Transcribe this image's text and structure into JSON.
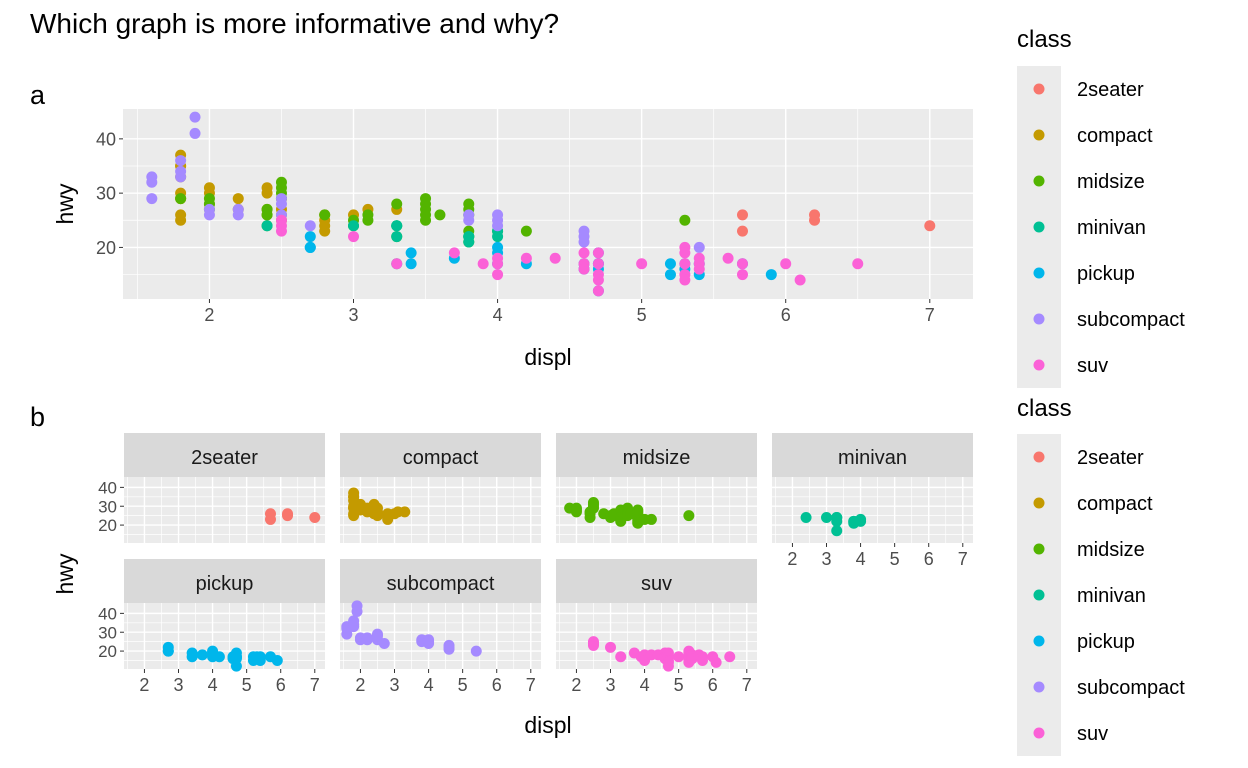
{
  "title": "Which graph is more informative and why?",
  "colors": {
    "2seater": "#F8766D",
    "compact": "#C49A00",
    "midsize": "#53B400",
    "minivan": "#00C094",
    "pickup": "#00B6EB",
    "subcompact": "#A58AFF",
    "suv": "#FB61D7",
    "panel_bg": "#EBEBEB",
    "strip_bg": "#D9D9D9",
    "grid": "#FFFFFF",
    "tick_text": "#4D4D4D"
  },
  "chart_data": [
    {
      "tag": "a",
      "type": "scatter",
      "xlabel": "displ",
      "ylabel": "hwy",
      "xlim": [
        1.4,
        7.3
      ],
      "ylim": [
        10.5,
        45.5
      ],
      "xticks": [
        2,
        3,
        4,
        5,
        6,
        7
      ],
      "yticks": [
        20,
        30,
        40
      ],
      "grid": true,
      "legend": {
        "title": "class",
        "position": "right",
        "entries": [
          "2seater",
          "compact",
          "midsize",
          "minivan",
          "pickup",
          "subcompact",
          "suv"
        ]
      },
      "series": [
        {
          "name": "2seater",
          "points": [
            [
              5.7,
              26
            ],
            [
              5.7,
              23
            ],
            [
              6.2,
              26
            ],
            [
              6.2,
              25
            ],
            [
              7.0,
              24
            ]
          ]
        },
        {
          "name": "compact",
          "points": [
            [
              1.8,
              29
            ],
            [
              1.8,
              29
            ],
            [
              1.8,
              26
            ],
            [
              1.8,
              25
            ],
            [
              1.8,
              30
            ],
            [
              1.8,
              33
            ],
            [
              1.8,
              35
            ],
            [
              1.8,
              37
            ],
            [
              1.8,
              35
            ],
            [
              2.0,
              31
            ],
            [
              2.0,
              30
            ],
            [
              2.0,
              28
            ],
            [
              2.2,
              29
            ],
            [
              2.2,
              27
            ],
            [
              2.4,
              31
            ],
            [
              2.4,
              30
            ],
            [
              2.4,
              27
            ],
            [
              2.4,
              26
            ],
            [
              2.5,
              29
            ],
            [
              2.5,
              27
            ],
            [
              2.5,
              26
            ],
            [
              2.5,
              25
            ],
            [
              2.8,
              26
            ],
            [
              2.8,
              25
            ],
            [
              2.8,
              24
            ],
            [
              2.8,
              23
            ],
            [
              3.0,
              26
            ],
            [
              3.1,
              27
            ],
            [
              3.3,
              27
            ]
          ]
        },
        {
          "name": "midsize",
          "points": [
            [
              1.8,
              29
            ],
            [
              2.0,
              29
            ],
            [
              2.0,
              28
            ],
            [
              2.0,
              27
            ],
            [
              2.4,
              27
            ],
            [
              2.4,
              26
            ],
            [
              2.4,
              24
            ],
            [
              2.5,
              32
            ],
            [
              2.5,
              31
            ],
            [
              2.5,
              30
            ],
            [
              2.5,
              29
            ],
            [
              2.8,
              26
            ],
            [
              3.0,
              25
            ],
            [
              3.0,
              24
            ],
            [
              3.1,
              26
            ],
            [
              3.1,
              25
            ],
            [
              3.3,
              28
            ],
            [
              3.3,
              24
            ],
            [
              3.3,
              22
            ],
            [
              3.5,
              29
            ],
            [
              3.5,
              28
            ],
            [
              3.5,
              27
            ],
            [
              3.5,
              26
            ],
            [
              3.5,
              25
            ],
            [
              3.6,
              26
            ],
            [
              3.8,
              28
            ],
            [
              3.8,
              27
            ],
            [
              3.8,
              26
            ],
            [
              3.8,
              23
            ],
            [
              3.8,
              22
            ],
            [
              3.8,
              21
            ],
            [
              4.0,
              23
            ],
            [
              4.2,
              23
            ],
            [
              5.3,
              25
            ]
          ]
        },
        {
          "name": "minivan",
          "points": [
            [
              2.4,
              24
            ],
            [
              3.0,
              24
            ],
            [
              3.3,
              24
            ],
            [
              3.3,
              22
            ],
            [
              3.3,
              24
            ],
            [
              3.8,
              22
            ],
            [
              3.8,
              21
            ],
            [
              3.8,
              22
            ],
            [
              4.0,
              23
            ],
            [
              4.0,
              22
            ],
            [
              3.3,
              17
            ]
          ]
        },
        {
          "name": "pickup",
          "points": [
            [
              2.7,
              22
            ],
            [
              2.7,
              20
            ],
            [
              2.7,
              20
            ],
            [
              3.4,
              19
            ],
            [
              3.4,
              17
            ],
            [
              3.7,
              18
            ],
            [
              4.0,
              19
            ],
            [
              4.0,
              20
            ],
            [
              4.0,
              17
            ],
            [
              4.2,
              17
            ],
            [
              4.6,
              17
            ],
            [
              4.6,
              16
            ],
            [
              4.7,
              17
            ],
            [
              4.7,
              19
            ],
            [
              4.7,
              12
            ],
            [
              4.7,
              17
            ],
            [
              5.2,
              17
            ],
            [
              5.2,
              15
            ],
            [
              5.3,
              16
            ],
            [
              5.4,
              17
            ],
            [
              5.4,
              15
            ],
            [
              5.7,
              17
            ],
            [
              5.9,
              15
            ],
            [
              4.7,
              16
            ],
            [
              5.3,
              17
            ]
          ]
        },
        {
          "name": "subcompact",
          "points": [
            [
              1.6,
              33
            ],
            [
              1.6,
              32
            ],
            [
              1.6,
              29
            ],
            [
              1.8,
              33
            ],
            [
              1.8,
              34
            ],
            [
              1.8,
              36
            ],
            [
              1.9,
              44
            ],
            [
              1.9,
              41
            ],
            [
              2.0,
              27
            ],
            [
              2.0,
              26
            ],
            [
              2.2,
              27
            ],
            [
              2.2,
              26
            ],
            [
              2.5,
              29
            ],
            [
              2.5,
              28
            ],
            [
              2.5,
              26
            ],
            [
              2.7,
              24
            ],
            [
              3.8,
              26
            ],
            [
              3.8,
              25
            ],
            [
              4.0,
              26
            ],
            [
              4.0,
              24
            ],
            [
              4.6,
              23
            ],
            [
              4.6,
              22
            ],
            [
              5.4,
              20
            ],
            [
              4.6,
              21
            ],
            [
              4.0,
              25
            ]
          ]
        },
        {
          "name": "suv",
          "points": [
            [
              2.5,
              25
            ],
            [
              2.5,
              24
            ],
            [
              2.5,
              23
            ],
            [
              3.0,
              22
            ],
            [
              3.3,
              17
            ],
            [
              3.7,
              19
            ],
            [
              3.9,
              17
            ],
            [
              4.0,
              18
            ],
            [
              4.0,
              17
            ],
            [
              4.0,
              15
            ],
            [
              4.2,
              18
            ],
            [
              4.4,
              18
            ],
            [
              4.6,
              19
            ],
            [
              4.6,
              17
            ],
            [
              4.6,
              16
            ],
            [
              4.7,
              19
            ],
            [
              4.7,
              17
            ],
            [
              4.7,
              15
            ],
            [
              4.7,
              14
            ],
            [
              4.7,
              12
            ],
            [
              5.0,
              17
            ],
            [
              5.3,
              20
            ],
            [
              5.3,
              19
            ],
            [
              5.3,
              17
            ],
            [
              5.3,
              15
            ],
            [
              5.3,
              14
            ],
            [
              5.4,
              18
            ],
            [
              5.4,
              17
            ],
            [
              5.4,
              16
            ],
            [
              5.6,
              18
            ],
            [
              5.7,
              17
            ],
            [
              5.7,
              15
            ],
            [
              6.0,
              17
            ],
            [
              6.1,
              14
            ],
            [
              6.5,
              17
            ]
          ]
        }
      ]
    },
    {
      "tag": "b",
      "type": "scatter",
      "faceted_by": "class",
      "facet_layout": "4 columns × 2 rows",
      "xlabel": "displ",
      "ylabel": "hwy",
      "xlim": [
        1.4,
        7.3
      ],
      "ylim": [
        10.5,
        45.5
      ],
      "xticks": [
        2,
        3,
        4,
        5,
        6,
        7
      ],
      "yticks": [
        20,
        30,
        40
      ],
      "grid": true,
      "legend": {
        "title": "class",
        "position": "right",
        "entries": [
          "2seater",
          "compact",
          "midsize",
          "minivan",
          "pickup",
          "subcompact",
          "suv"
        ]
      },
      "facets": [
        "2seater",
        "compact",
        "midsize",
        "minivan",
        "pickup",
        "subcompact",
        "suv"
      ]
    }
  ]
}
